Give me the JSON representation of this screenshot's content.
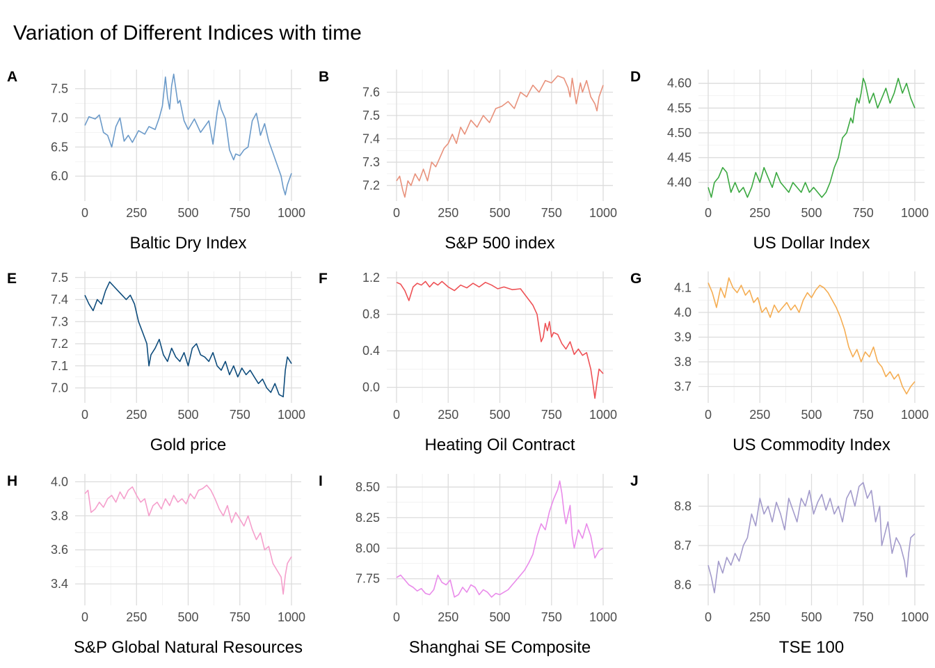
{
  "title": "Variation of Different Indices with time",
  "chart_data": [
    {
      "panel": "A",
      "type": "line",
      "xlabel": "Baltic Dry Index",
      "color": "#6b9ac9",
      "xlim": [
        0,
        1000
      ],
      "ylim": [
        5.62,
        7.78
      ],
      "xticks": [
        0,
        250,
        500,
        750,
        1000
      ],
      "xtick_labels": [
        "0",
        "250",
        "500",
        "750",
        "1000"
      ],
      "yticks": [
        6.0,
        6.5,
        7.0,
        7.5
      ],
      "ytick_labels": [
        "6.0",
        "6.5",
        "7.0",
        "7.5"
      ],
      "x": [
        0,
        20,
        50,
        70,
        90,
        110,
        130,
        150,
        170,
        190,
        210,
        230,
        260,
        290,
        310,
        340,
        360,
        375,
        390,
        400,
        410,
        420,
        430,
        440,
        450,
        460,
        480,
        500,
        530,
        560,
        580,
        600,
        620,
        640,
        650,
        660,
        680,
        700,
        720,
        730,
        750,
        770,
        790,
        810,
        830,
        840,
        850,
        870,
        890,
        910,
        930,
        950,
        960,
        970,
        980,
        1000
      ],
      "y": [
        6.87,
        7.02,
        6.98,
        7.05,
        6.75,
        6.7,
        6.5,
        6.85,
        7.0,
        6.6,
        6.7,
        6.58,
        6.78,
        6.72,
        6.85,
        6.8,
        7.0,
        7.2,
        7.7,
        7.35,
        7.15,
        7.55,
        7.75,
        7.5,
        7.25,
        7.3,
        6.95,
        6.8,
        6.98,
        6.75,
        6.85,
        6.95,
        6.55,
        7.1,
        7.3,
        7.15,
        6.98,
        6.45,
        6.28,
        6.38,
        6.35,
        6.45,
        6.5,
        6.95,
        7.08,
        6.9,
        6.7,
        6.9,
        6.6,
        6.4,
        6.2,
        6.0,
        5.8,
        5.68,
        5.85,
        6.05
      ]
    },
    {
      "panel": "B",
      "type": "line",
      "xlabel": "S&P 500 index",
      "color": "#e8917b",
      "xlim": [
        0,
        1000
      ],
      "ylim": [
        7.145,
        7.685
      ],
      "xticks": [
        0,
        250,
        500,
        750,
        1000
      ],
      "xtick_labels": [
        "0",
        "250",
        "500",
        "750",
        "1000"
      ],
      "yticks": [
        7.2,
        7.3,
        7.4,
        7.5,
        7.6
      ],
      "ytick_labels": [
        "7.2",
        "7.3",
        "7.4",
        "7.5",
        "7.6"
      ],
      "x": [
        0,
        15,
        30,
        40,
        55,
        70,
        90,
        110,
        130,
        150,
        170,
        190,
        210,
        230,
        250,
        270,
        290,
        310,
        330,
        360,
        390,
        420,
        450,
        480,
        510,
        540,
        570,
        600,
        630,
        660,
        690,
        720,
        750,
        780,
        810,
        830,
        840,
        850,
        870,
        890,
        900,
        920,
        940,
        960,
        970,
        980,
        1000
      ],
      "y": [
        7.22,
        7.24,
        7.18,
        7.15,
        7.22,
        7.2,
        7.25,
        7.22,
        7.27,
        7.22,
        7.3,
        7.28,
        7.32,
        7.36,
        7.38,
        7.42,
        7.38,
        7.45,
        7.42,
        7.48,
        7.45,
        7.5,
        7.47,
        7.53,
        7.54,
        7.56,
        7.53,
        7.6,
        7.58,
        7.63,
        7.6,
        7.65,
        7.64,
        7.67,
        7.66,
        7.62,
        7.58,
        7.66,
        7.55,
        7.64,
        7.6,
        7.65,
        7.58,
        7.55,
        7.52,
        7.58,
        7.63
      ]
    },
    {
      "panel": "D",
      "type": "line",
      "xlabel": "US Dollar Index",
      "color": "#3aa840",
      "xlim": [
        0,
        1000
      ],
      "ylim": [
        4.368,
        4.622
      ],
      "xticks": [
        0,
        250,
        500,
        750,
        1000
      ],
      "xtick_labels": [
        "0",
        "250",
        "500",
        "750",
        "1000"
      ],
      "yticks": [
        4.4,
        4.45,
        4.5,
        4.55,
        4.6
      ],
      "ytick_labels": [
        "4.40",
        "4.45",
        "4.50",
        "4.55",
        "4.60"
      ],
      "x": [
        0,
        15,
        30,
        50,
        70,
        90,
        110,
        130,
        150,
        170,
        190,
        210,
        230,
        250,
        270,
        290,
        310,
        330,
        350,
        370,
        390,
        410,
        430,
        450,
        470,
        490,
        510,
        530,
        550,
        570,
        590,
        610,
        630,
        650,
        670,
        690,
        700,
        710,
        720,
        730,
        740,
        750,
        760,
        780,
        800,
        820,
        840,
        860,
        880,
        900,
        920,
        940,
        960,
        980,
        1000
      ],
      "y": [
        4.39,
        4.37,
        4.4,
        4.41,
        4.43,
        4.42,
        4.38,
        4.4,
        4.38,
        4.39,
        4.37,
        4.39,
        4.42,
        4.4,
        4.43,
        4.41,
        4.39,
        4.42,
        4.4,
        4.39,
        4.38,
        4.4,
        4.39,
        4.38,
        4.4,
        4.38,
        4.39,
        4.38,
        4.37,
        4.38,
        4.4,
        4.43,
        4.45,
        4.49,
        4.5,
        4.53,
        4.52,
        4.55,
        4.57,
        4.56,
        4.58,
        4.61,
        4.6,
        4.56,
        4.58,
        4.55,
        4.57,
        4.59,
        4.56,
        4.58,
        4.61,
        4.58,
        4.6,
        4.57,
        4.55
      ]
    },
    {
      "panel": "E",
      "type": "line",
      "xlabel": "Gold price",
      "color": "#0e4c7c",
      "xlim": [
        0,
        1000
      ],
      "ylim": [
        6.945,
        7.515
      ],
      "xticks": [
        0,
        250,
        500,
        750,
        1000
      ],
      "xtick_labels": [
        "0",
        "250",
        "500",
        "750",
        "1000"
      ],
      "yticks": [
        7.0,
        7.1,
        7.2,
        7.3,
        7.4,
        7.5
      ],
      "ytick_labels": [
        "7.0",
        "7.1",
        "7.2",
        "7.3",
        "7.4",
        "7.5"
      ],
      "x": [
        0,
        20,
        40,
        60,
        80,
        100,
        120,
        140,
        160,
        180,
        200,
        220,
        240,
        260,
        280,
        300,
        310,
        320,
        340,
        360,
        380,
        400,
        420,
        440,
        460,
        480,
        500,
        520,
        540,
        560,
        580,
        600,
        620,
        640,
        660,
        680,
        700,
        720,
        740,
        760,
        780,
        800,
        820,
        840,
        860,
        880,
        900,
        920,
        940,
        960,
        970,
        980,
        1000
      ],
      "y": [
        7.42,
        7.38,
        7.35,
        7.4,
        7.38,
        7.44,
        7.48,
        7.46,
        7.44,
        7.42,
        7.4,
        7.42,
        7.38,
        7.3,
        7.25,
        7.2,
        7.1,
        7.15,
        7.18,
        7.22,
        7.15,
        7.12,
        7.18,
        7.14,
        7.12,
        7.16,
        7.1,
        7.18,
        7.2,
        7.15,
        7.14,
        7.12,
        7.16,
        7.1,
        7.08,
        7.12,
        7.06,
        7.1,
        7.05,
        7.09,
        7.06,
        7.08,
        7.05,
        7.02,
        7.04,
        7.0,
        6.98,
        7.02,
        6.97,
        6.96,
        7.08,
        7.14,
        7.11
      ]
    },
    {
      "panel": "F",
      "type": "line",
      "xlabel": "Heating Oil Contract",
      "color": "#ee5155",
      "xlim": [
        0,
        1000
      ],
      "ylim": [
        -0.14,
        1.24
      ],
      "xticks": [
        0,
        250,
        500,
        750,
        1000
      ],
      "xtick_labels": [
        "0",
        "250",
        "500",
        "750",
        "1000"
      ],
      "yticks": [
        0.0,
        0.4,
        0.8,
        1.2
      ],
      "ytick_labels": [
        "0.0",
        "0.4",
        "0.8",
        "1.2"
      ],
      "x": [
        0,
        20,
        40,
        60,
        80,
        100,
        120,
        140,
        160,
        180,
        200,
        220,
        250,
        280,
        310,
        340,
        370,
        400,
        430,
        460,
        490,
        520,
        560,
        600,
        620,
        640,
        660,
        680,
        690,
        700,
        710,
        720,
        730,
        740,
        750,
        760,
        780,
        800,
        820,
        840,
        860,
        880,
        900,
        920,
        940,
        950,
        960,
        970,
        980,
        1000
      ],
      "y": [
        1.15,
        1.13,
        1.06,
        0.95,
        1.1,
        1.14,
        1.12,
        1.16,
        1.1,
        1.15,
        1.12,
        1.16,
        1.1,
        1.06,
        1.12,
        1.09,
        1.14,
        1.1,
        1.15,
        1.12,
        1.08,
        1.1,
        1.07,
        1.08,
        1.02,
        0.96,
        0.9,
        0.8,
        0.65,
        0.5,
        0.55,
        0.7,
        0.62,
        0.72,
        0.55,
        0.6,
        0.58,
        0.48,
        0.42,
        0.5,
        0.36,
        0.42,
        0.35,
        0.38,
        0.2,
        0.05,
        -0.12,
        0.05,
        0.2,
        0.15
      ]
    },
    {
      "panel": "G",
      "type": "line",
      "xlabel": "US Commodity Index",
      "color": "#f5ad52",
      "xlim": [
        0,
        1000
      ],
      "ylim": [
        3.645,
        4.155
      ],
      "xticks": [
        0,
        250,
        500,
        750,
        1000
      ],
      "xtick_labels": [
        "0",
        "250",
        "500",
        "750",
        "1000"
      ],
      "yticks": [
        3.7,
        3.8,
        3.9,
        4.0,
        4.1
      ],
      "ytick_labels": [
        "3.7",
        "3.8",
        "3.9",
        "4.0",
        "4.1"
      ],
      "x": [
        0,
        20,
        40,
        60,
        80,
        100,
        120,
        140,
        160,
        180,
        200,
        220,
        240,
        260,
        280,
        300,
        320,
        340,
        360,
        380,
        400,
        420,
        440,
        460,
        480,
        500,
        520,
        540,
        560,
        580,
        600,
        620,
        640,
        660,
        680,
        700,
        720,
        740,
        760,
        780,
        800,
        820,
        840,
        860,
        880,
        900,
        920,
        940,
        960,
        980,
        1000
      ],
      "y": [
        4.12,
        4.08,
        4.02,
        4.1,
        4.06,
        4.14,
        4.1,
        4.08,
        4.11,
        4.07,
        4.09,
        4.04,
        4.06,
        4.0,
        4.02,
        3.98,
        4.03,
        4.0,
        4.02,
        4.04,
        4.01,
        4.03,
        4.0,
        4.05,
        4.08,
        4.06,
        4.09,
        4.11,
        4.1,
        4.08,
        4.05,
        4.02,
        3.98,
        3.93,
        3.86,
        3.82,
        3.85,
        3.8,
        3.84,
        3.82,
        3.86,
        3.8,
        3.78,
        3.74,
        3.76,
        3.73,
        3.75,
        3.7,
        3.67,
        3.7,
        3.72
      ]
    },
    {
      "panel": "H",
      "type": "line",
      "xlabel": "S&P Global Natural Resources",
      "color": "#f59fcc",
      "xlim": [
        0,
        1000
      ],
      "ylim": [
        3.29,
        4.03
      ],
      "xticks": [
        0,
        250,
        500,
        750,
        1000
      ],
      "xtick_labels": [
        "0",
        "250",
        "500",
        "750",
        "1000"
      ],
      "yticks": [
        3.4,
        3.6,
        3.8,
        4.0
      ],
      "ytick_labels": [
        "3.4",
        "3.6",
        "3.8",
        "4.0"
      ],
      "x": [
        0,
        15,
        30,
        50,
        70,
        90,
        110,
        130,
        150,
        170,
        190,
        210,
        230,
        250,
        270,
        290,
        310,
        330,
        350,
        370,
        390,
        410,
        430,
        450,
        470,
        490,
        510,
        530,
        550,
        570,
        590,
        610,
        630,
        650,
        670,
        690,
        710,
        730,
        750,
        770,
        790,
        810,
        830,
        850,
        870,
        890,
        910,
        930,
        950,
        960,
        970,
        980,
        1000
      ],
      "y": [
        3.93,
        3.95,
        3.82,
        3.84,
        3.88,
        3.85,
        3.9,
        3.92,
        3.88,
        3.94,
        3.9,
        3.95,
        3.97,
        3.92,
        3.88,
        3.9,
        3.8,
        3.86,
        3.88,
        3.84,
        3.9,
        3.86,
        3.92,
        3.88,
        3.9,
        3.87,
        3.93,
        3.9,
        3.95,
        3.96,
        3.98,
        3.95,
        3.9,
        3.84,
        3.8,
        3.86,
        3.76,
        3.82,
        3.78,
        3.74,
        3.8,
        3.72,
        3.66,
        3.7,
        3.6,
        3.62,
        3.52,
        3.48,
        3.44,
        3.34,
        3.45,
        3.52,
        3.56
      ]
    },
    {
      "panel": "I",
      "type": "line",
      "xlabel": "Shanghai SE Composite",
      "color": "#e98bea",
      "xlim": [
        0,
        1000
      ],
      "ylim": [
        7.555,
        8.585
      ],
      "xticks": [
        0,
        250,
        500,
        750,
        1000
      ],
      "xtick_labels": [
        "0",
        "250",
        "500",
        "750",
        "1000"
      ],
      "yticks": [
        7.75,
        8.0,
        8.25,
        8.5
      ],
      "ytick_labels": [
        "7.75",
        "8.00",
        "8.25",
        "8.50"
      ],
      "x": [
        0,
        20,
        40,
        60,
        80,
        100,
        120,
        140,
        160,
        180,
        200,
        220,
        240,
        260,
        280,
        300,
        320,
        340,
        360,
        380,
        400,
        420,
        440,
        460,
        480,
        500,
        520,
        540,
        560,
        580,
        600,
        620,
        640,
        660,
        680,
        700,
        720,
        740,
        760,
        780,
        790,
        800,
        810,
        820,
        840,
        850,
        860,
        880,
        900,
        920,
        940,
        960,
        980,
        1000
      ],
      "y": [
        7.76,
        7.78,
        7.74,
        7.7,
        7.68,
        7.65,
        7.67,
        7.63,
        7.62,
        7.66,
        7.78,
        7.72,
        7.7,
        7.74,
        7.6,
        7.62,
        7.68,
        7.64,
        7.7,
        7.68,
        7.62,
        7.66,
        7.64,
        7.6,
        7.63,
        7.62,
        7.64,
        7.66,
        7.7,
        7.74,
        7.78,
        7.82,
        7.88,
        7.95,
        8.1,
        8.2,
        8.15,
        8.3,
        8.4,
        8.48,
        8.55,
        8.45,
        8.3,
        8.2,
        8.35,
        8.1,
        8.0,
        8.15,
        8.08,
        8.2,
        8.1,
        7.92,
        7.98,
        8.0
      ]
    },
    {
      "panel": "J",
      "type": "line",
      "xlabel": "TSE 100",
      "color": "#a39bcb",
      "xlim": [
        0,
        1000
      ],
      "ylim": [
        8.555,
        8.875
      ],
      "xticks": [
        0,
        250,
        500,
        750,
        1000
      ],
      "xtick_labels": [
        "0",
        "250",
        "500",
        "750",
        "1000"
      ],
      "yticks": [
        8.6,
        8.7,
        8.8
      ],
      "ytick_labels": [
        "8.6",
        "8.7",
        "8.8"
      ],
      "x": [
        0,
        15,
        30,
        50,
        70,
        90,
        110,
        130,
        150,
        170,
        190,
        210,
        230,
        250,
        270,
        290,
        310,
        330,
        350,
        370,
        390,
        410,
        430,
        450,
        470,
        490,
        510,
        530,
        550,
        570,
        590,
        610,
        630,
        650,
        670,
        690,
        710,
        730,
        750,
        770,
        790,
        810,
        830,
        840,
        850,
        870,
        890,
        910,
        930,
        950,
        960,
        970,
        980,
        1000
      ],
      "y": [
        8.65,
        8.62,
        8.58,
        8.66,
        8.63,
        8.67,
        8.65,
        8.68,
        8.66,
        8.7,
        8.72,
        8.78,
        8.75,
        8.82,
        8.78,
        8.8,
        8.76,
        8.81,
        8.78,
        8.74,
        8.82,
        8.79,
        8.76,
        8.82,
        8.8,
        8.84,
        8.78,
        8.81,
        8.83,
        8.79,
        8.82,
        8.78,
        8.8,
        8.76,
        8.82,
        8.84,
        8.8,
        8.85,
        8.86,
        8.82,
        8.84,
        8.76,
        8.8,
        8.7,
        8.72,
        8.76,
        8.68,
        8.72,
        8.7,
        8.66,
        8.62,
        8.68,
        8.72,
        8.73
      ]
    }
  ]
}
